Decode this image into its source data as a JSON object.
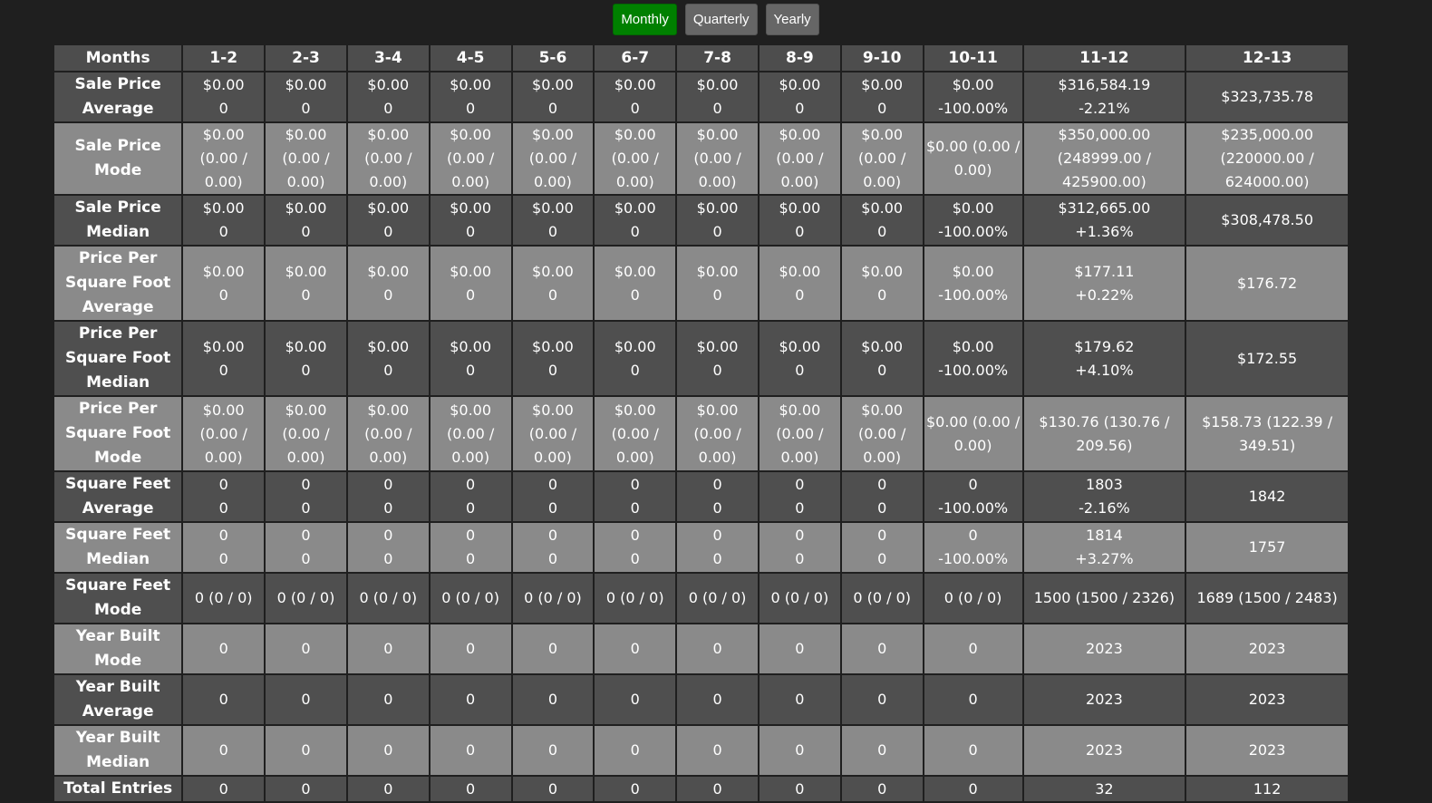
{
  "toolbar": {
    "buttons": [
      "Monthly",
      "Quarterly",
      "Yearly"
    ],
    "active": "Monthly"
  },
  "table": {
    "columns": [
      "Months",
      "1-2",
      "2-3",
      "3-4",
      "4-5",
      "5-6",
      "6-7",
      "7-8",
      "8-9",
      "9-10",
      "10-11",
      "11-12",
      "12-13"
    ],
    "rows": [
      {
        "label": "Sale Price Average",
        "cells": [
          [
            "$0.00",
            "0"
          ],
          [
            "$0.00",
            "0"
          ],
          [
            "$0.00",
            "0"
          ],
          [
            "$0.00",
            "0"
          ],
          [
            "$0.00",
            "0"
          ],
          [
            "$0.00",
            "0"
          ],
          [
            "$0.00",
            "0"
          ],
          [
            "$0.00",
            "0"
          ],
          [
            "$0.00",
            "0"
          ],
          [
            "$0.00",
            "-100.00%"
          ],
          [
            "$316,584.19",
            "-2.21%"
          ],
          [
            "$323,735.78"
          ]
        ]
      },
      {
        "label": "Sale Price Mode",
        "cells": [
          [
            "$0.00 (0.00 / 0.00)"
          ],
          [
            "$0.00 (0.00 / 0.00)"
          ],
          [
            "$0.00 (0.00 / 0.00)"
          ],
          [
            "$0.00 (0.00 / 0.00)"
          ],
          [
            "$0.00 (0.00 / 0.00)"
          ],
          [
            "$0.00 (0.00 / 0.00)"
          ],
          [
            "$0.00 (0.00 / 0.00)"
          ],
          [
            "$0.00 (0.00 / 0.00)"
          ],
          [
            "$0.00 (0.00 / 0.00)"
          ],
          [
            "$0.00 (0.00 / 0.00)"
          ],
          [
            "$350,000.00 (248999.00 / 425900.00)"
          ],
          [
            "$235,000.00 (220000.00 / 624000.00)"
          ]
        ]
      },
      {
        "label": "Sale Price Median",
        "cells": [
          [
            "$0.00",
            "0"
          ],
          [
            "$0.00",
            "0"
          ],
          [
            "$0.00",
            "0"
          ],
          [
            "$0.00",
            "0"
          ],
          [
            "$0.00",
            "0"
          ],
          [
            "$0.00",
            "0"
          ],
          [
            "$0.00",
            "0"
          ],
          [
            "$0.00",
            "0"
          ],
          [
            "$0.00",
            "0"
          ],
          [
            "$0.00",
            "-100.00%"
          ],
          [
            "$312,665.00",
            "+1.36%"
          ],
          [
            "$308,478.50"
          ]
        ]
      },
      {
        "label": "Price Per Square Foot Average",
        "cells": [
          [
            "$0.00",
            "0"
          ],
          [
            "$0.00",
            "0"
          ],
          [
            "$0.00",
            "0"
          ],
          [
            "$0.00",
            "0"
          ],
          [
            "$0.00",
            "0"
          ],
          [
            "$0.00",
            "0"
          ],
          [
            "$0.00",
            "0"
          ],
          [
            "$0.00",
            "0"
          ],
          [
            "$0.00",
            "0"
          ],
          [
            "$0.00",
            "-100.00%"
          ],
          [
            "$177.11",
            "+0.22%"
          ],
          [
            "$176.72"
          ]
        ]
      },
      {
        "label": "Price Per Square Foot Median",
        "cells": [
          [
            "$0.00",
            "0"
          ],
          [
            "$0.00",
            "0"
          ],
          [
            "$0.00",
            "0"
          ],
          [
            "$0.00",
            "0"
          ],
          [
            "$0.00",
            "0"
          ],
          [
            "$0.00",
            "0"
          ],
          [
            "$0.00",
            "0"
          ],
          [
            "$0.00",
            "0"
          ],
          [
            "$0.00",
            "0"
          ],
          [
            "$0.00",
            "-100.00%"
          ],
          [
            "$179.62",
            "+4.10%"
          ],
          [
            "$172.55"
          ]
        ]
      },
      {
        "label": "Price Per Square Foot Mode",
        "cells": [
          [
            "$0.00 (0.00 / 0.00)"
          ],
          [
            "$0.00 (0.00 / 0.00)"
          ],
          [
            "$0.00 (0.00 / 0.00)"
          ],
          [
            "$0.00 (0.00 / 0.00)"
          ],
          [
            "$0.00 (0.00 / 0.00)"
          ],
          [
            "$0.00 (0.00 / 0.00)"
          ],
          [
            "$0.00 (0.00 / 0.00)"
          ],
          [
            "$0.00 (0.00 / 0.00)"
          ],
          [
            "$0.00 (0.00 / 0.00)"
          ],
          [
            "$0.00 (0.00 / 0.00)"
          ],
          [
            "$130.76 (130.76 / 209.56)"
          ],
          [
            "$158.73 (122.39 / 349.51)"
          ]
        ]
      },
      {
        "label": "Square Feet Average",
        "cells": [
          [
            "0",
            "0"
          ],
          [
            "0",
            "0"
          ],
          [
            "0",
            "0"
          ],
          [
            "0",
            "0"
          ],
          [
            "0",
            "0"
          ],
          [
            "0",
            "0"
          ],
          [
            "0",
            "0"
          ],
          [
            "0",
            "0"
          ],
          [
            "0",
            "0"
          ],
          [
            "0",
            "-100.00%"
          ],
          [
            "1803",
            "-2.16%"
          ],
          [
            "1842"
          ]
        ]
      },
      {
        "label": "Square Feet Median",
        "cells": [
          [
            "0",
            "0"
          ],
          [
            "0",
            "0"
          ],
          [
            "0",
            "0"
          ],
          [
            "0",
            "0"
          ],
          [
            "0",
            "0"
          ],
          [
            "0",
            "0"
          ],
          [
            "0",
            "0"
          ],
          [
            "0",
            "0"
          ],
          [
            "0",
            "0"
          ],
          [
            "0",
            "-100.00%"
          ],
          [
            "1814",
            "+3.27%"
          ],
          [
            "1757"
          ]
        ]
      },
      {
        "label": "Square Feet Mode",
        "cells": [
          [
            "0 (0 / 0)"
          ],
          [
            "0 (0 / 0)"
          ],
          [
            "0 (0 / 0)"
          ],
          [
            "0 (0 / 0)"
          ],
          [
            "0 (0 / 0)"
          ],
          [
            "0 (0 / 0)"
          ],
          [
            "0 (0 / 0)"
          ],
          [
            "0 (0 / 0)"
          ],
          [
            "0 (0 / 0)"
          ],
          [
            "0 (0 / 0)"
          ],
          [
            "1500 (1500 / 2326)"
          ],
          [
            "1689 (1500 / 2483)"
          ]
        ]
      },
      {
        "label": "Year Built Mode",
        "cells": [
          [
            "0"
          ],
          [
            "0"
          ],
          [
            "0"
          ],
          [
            "0"
          ],
          [
            "0"
          ],
          [
            "0"
          ],
          [
            "0"
          ],
          [
            "0"
          ],
          [
            "0"
          ],
          [
            "0"
          ],
          [
            "2023"
          ],
          [
            "2023"
          ]
        ]
      },
      {
        "label": "Year Built Average",
        "cells": [
          [
            "0"
          ],
          [
            "0"
          ],
          [
            "0"
          ],
          [
            "0"
          ],
          [
            "0"
          ],
          [
            "0"
          ],
          [
            "0"
          ],
          [
            "0"
          ],
          [
            "0"
          ],
          [
            "0"
          ],
          [
            "2023"
          ],
          [
            "2023"
          ]
        ]
      },
      {
        "label": "Year Built Median",
        "cells": [
          [
            "0"
          ],
          [
            "0"
          ],
          [
            "0"
          ],
          [
            "0"
          ],
          [
            "0"
          ],
          [
            "0"
          ],
          [
            "0"
          ],
          [
            "0"
          ],
          [
            "0"
          ],
          [
            "0"
          ],
          [
            "2023"
          ],
          [
            "2023"
          ]
        ]
      },
      {
        "label": "Total Entries",
        "cells": [
          [
            "0"
          ],
          [
            "0"
          ],
          [
            "0"
          ],
          [
            "0"
          ],
          [
            "0"
          ],
          [
            "0"
          ],
          [
            "0"
          ],
          [
            "0"
          ],
          [
            "0"
          ],
          [
            "0"
          ],
          [
            "32"
          ],
          [
            "112"
          ]
        ]
      }
    ]
  },
  "colors": {
    "page_bg": "#1f1f1f",
    "row_dark": "#4f4f4f",
    "row_light": "#8a8a8a",
    "active_button": "#008000",
    "button": "#666666"
  }
}
